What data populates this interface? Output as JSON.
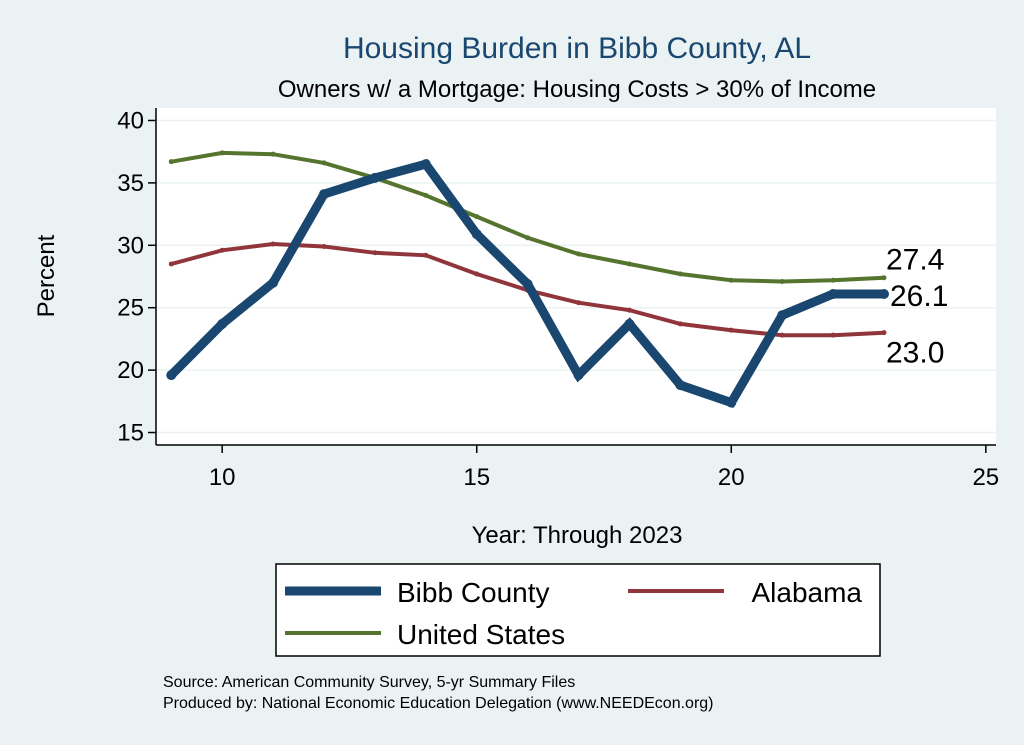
{
  "chart_data": {
    "type": "line",
    "title": "Housing Burden in Bibb County, AL",
    "subtitle": "Owners w/ a Mortgage: Housing Costs > 30% of Income",
    "xlabel": "Year: Through 2023",
    "ylabel": "Percent",
    "xlim": [
      8.7,
      25.2
    ],
    "ylim": [
      14,
      41
    ],
    "xticks": [
      10,
      15,
      20,
      25
    ],
    "yticks": [
      15,
      20,
      25,
      30,
      35,
      40
    ],
    "grid": true,
    "x": [
      9,
      10,
      11,
      12,
      13,
      14,
      15,
      16,
      17,
      18,
      19,
      20,
      21,
      22,
      23
    ],
    "series": [
      {
        "name": "Bibb County",
        "color": "#1a476f",
        "width": 9,
        "values": [
          19.6,
          23.7,
          27.0,
          34.1,
          35.4,
          36.5,
          30.9,
          26.9,
          19.6,
          23.7,
          18.8,
          17.4,
          24.4,
          26.1,
          26.1
        ],
        "end_label": "26.1"
      },
      {
        "name": "Alabama",
        "color": "#90353b",
        "width": 4,
        "values": [
          28.5,
          29.6,
          30.1,
          29.9,
          29.4,
          29.2,
          27.7,
          26.4,
          25.4,
          24.8,
          23.7,
          23.2,
          22.8,
          22.8,
          23.0
        ],
        "end_label": "23.0"
      },
      {
        "name": "United States",
        "color": "#55752f",
        "width": 4,
        "values": [
          36.7,
          37.4,
          37.3,
          36.6,
          35.4,
          34.0,
          32.3,
          30.6,
          29.3,
          28.5,
          27.7,
          27.2,
          27.1,
          27.2,
          27.4
        ],
        "end_label": "27.4"
      }
    ],
    "legend": {
      "position": "bottom",
      "entries": [
        "Bibb County",
        "Alabama",
        "United States"
      ]
    },
    "notes": [
      "Source: American Community Survey, 5-yr Summary Files",
      "Produced by: National Economic Education Delegation (www.NEEDEcon.org)"
    ]
  }
}
